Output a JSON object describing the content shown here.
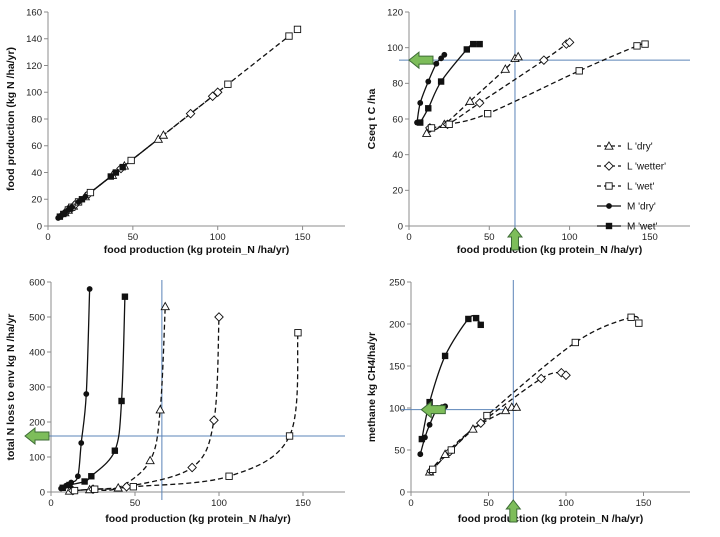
{
  "chart_data": [
    {
      "id": "tl",
      "type": "scatter",
      "xlabel": "food production (kg protein_N /ha/yr)",
      "ylabel": "food production  (kg N /ha/yr)",
      "xlim": [
        0,
        175
      ],
      "ylim": [
        0,
        160
      ],
      "xticks": [
        "0",
        "50",
        "100",
        "150"
      ],
      "yticks": [
        "0",
        "20",
        "40",
        "60",
        "80",
        "100",
        "120",
        "140",
        "160"
      ],
      "xtick_values": [
        0,
        50,
        100,
        150
      ],
      "ytick_values": [
        0,
        20,
        40,
        60,
        80,
        100,
        120,
        140,
        160
      ],
      "series": [
        {
          "marker": "triangle",
          "line": "dashed",
          "fit": "linear",
          "points": [
            [
              10,
              10
            ],
            [
              12,
              12
            ],
            [
              15,
              15
            ],
            [
              22,
              22
            ],
            [
              38,
              38
            ],
            [
              45,
              45
            ],
            [
              65,
              65
            ],
            [
              68,
              68
            ]
          ]
        },
        {
          "marker": "diamond",
          "line": "dashed",
          "fit": "linear",
          "points": [
            [
              11,
              11
            ],
            [
              13,
              13
            ],
            [
              16,
              16
            ],
            [
              24,
              24
            ],
            [
              43,
              43
            ],
            [
              84,
              84
            ],
            [
              97,
              97
            ],
            [
              100,
              100
            ]
          ]
        },
        {
          "marker": "square-open",
          "line": "dashed",
          "fit": "linear",
          "points": [
            [
              12,
              12
            ],
            [
              14,
              14
            ],
            [
              18,
              18
            ],
            [
              25,
              25
            ],
            [
              49,
              49
            ],
            [
              106,
              106
            ],
            [
              142,
              142
            ],
            [
              147,
              147
            ]
          ]
        },
        {
          "marker": "dot",
          "line": "solid",
          "fit": "linear",
          "points": [
            [
              6,
              6
            ],
            [
              8,
              8
            ],
            [
              10,
              10
            ],
            [
              12,
              12
            ],
            [
              14,
              14
            ],
            [
              18,
              18
            ],
            [
              22,
              22
            ]
          ]
        },
        {
          "marker": "square-filled",
          "line": "solid",
          "fit": "linear",
          "points": [
            [
              7,
              7
            ],
            [
              9,
              9
            ],
            [
              13,
              13
            ],
            [
              20,
              20
            ],
            [
              37,
              37
            ],
            [
              40,
              40
            ],
            [
              44,
              44
            ]
          ]
        }
      ]
    },
    {
      "id": "tr",
      "type": "scatter",
      "xlabel": "food production (kg protein_N /ha/yr)",
      "ylabel": "Cseq  t C /ha",
      "xlim": [
        0,
        175
      ],
      "ylim": [
        0,
        120
      ],
      "xticks": [
        "0",
        "50",
        "100",
        "150"
      ],
      "yticks": [
        "0",
        "20",
        "40",
        "60",
        "80",
        "100",
        "120"
      ],
      "xtick_values": [
        0,
        50,
        100,
        150
      ],
      "ytick_values": [
        0,
        20,
        40,
        60,
        80,
        100,
        120
      ],
      "ref_lines": {
        "x": 66,
        "y": 93
      },
      "legend": [
        {
          "label": "L 'dry'",
          "marker": "triangle",
          "line": "dashed"
        },
        {
          "label": "L 'wetter'",
          "marker": "diamond",
          "line": "dashed"
        },
        {
          "label": "L 'wet'",
          "marker": "square-open",
          "line": "dashed"
        },
        {
          "label": "M 'dry'",
          "marker": "dot",
          "line": "solid"
        },
        {
          "label": "M 'wet'",
          "marker": "square-filled",
          "line": "solid"
        }
      ],
      "series": [
        {
          "marker": "triangle",
          "points": [
            [
              11,
              52
            ],
            [
              22,
              57
            ],
            [
              38,
              70
            ],
            [
              60,
              88
            ],
            [
              66,
              94
            ],
            [
              68,
              95
            ]
          ]
        },
        {
          "marker": "diamond",
          "points": [
            [
              13,
              55
            ],
            [
              24,
              57
            ],
            [
              44,
              69
            ],
            [
              84,
              93
            ],
            [
              98,
              102
            ],
            [
              100,
              103
            ]
          ]
        },
        {
          "marker": "square-open",
          "points": [
            [
              14,
              55
            ],
            [
              25,
              57
            ],
            [
              49,
              63
            ],
            [
              106,
              87
            ],
            [
              142,
              101
            ],
            [
              147,
              102
            ]
          ]
        },
        {
          "marker": "dot",
          "points": [
            [
              5,
              58
            ],
            [
              7,
              69
            ],
            [
              12,
              81
            ],
            [
              17,
              91
            ],
            [
              20,
              94
            ],
            [
              22,
              96
            ]
          ]
        },
        {
          "marker": "square-filled",
          "points": [
            [
              7,
              58
            ],
            [
              12,
              66
            ],
            [
              20,
              81
            ],
            [
              36,
              99
            ],
            [
              40,
              102
            ],
            [
              44,
              102
            ]
          ]
        }
      ]
    },
    {
      "id": "bl",
      "type": "scatter",
      "xlabel": "food production (kg protein_N /ha/yr)",
      "ylabel": "total N loss to env kg N /ha/yr",
      "xlim": [
        0,
        175
      ],
      "ylim": [
        0,
        600
      ],
      "xticks": [
        "0",
        "50",
        "100",
        "150"
      ],
      "yticks": [
        "0",
        "100",
        "200",
        "300",
        "400",
        "500",
        "600"
      ],
      "xtick_values": [
        0,
        50,
        100,
        150
      ],
      "ytick_values": [
        0,
        100,
        200,
        300,
        400,
        500,
        600
      ],
      "ref_lines": {
        "x": 66,
        "y": 160
      },
      "series": [
        {
          "marker": "triangle",
          "points": [
            [
              11,
              3
            ],
            [
              23,
              7
            ],
            [
              40,
              12
            ],
            [
              59,
              90
            ],
            [
              65,
              235
            ],
            [
              68,
              530
            ]
          ]
        },
        {
          "marker": "diamond",
          "points": [
            [
              13,
              4
            ],
            [
              25,
              8
            ],
            [
              45,
              15
            ],
            [
              84,
              70
            ],
            [
              97,
              205
            ],
            [
              100,
              500
            ]
          ]
        },
        {
          "marker": "square-open",
          "points": [
            [
              14,
              4
            ],
            [
              26,
              8
            ],
            [
              49,
              15
            ],
            [
              106,
              45
            ],
            [
              142,
              160
            ],
            [
              147,
              455
            ]
          ]
        },
        {
          "marker": "dot",
          "points": [
            [
              6,
              10
            ],
            [
              9,
              18
            ],
            [
              12,
              27
            ],
            [
              16,
              45
            ],
            [
              18,
              140
            ],
            [
              21,
              280
            ],
            [
              23,
              580
            ]
          ]
        },
        {
          "marker": "square-filled",
          "points": [
            [
              7,
              12
            ],
            [
              11,
              20
            ],
            [
              20,
              30
            ],
            [
              24,
              45
            ],
            [
              38,
              118
            ],
            [
              42,
              260
            ],
            [
              44,
              558
            ]
          ]
        }
      ]
    },
    {
      "id": "br",
      "type": "scatter",
      "xlabel": "food production (kg protein_N /ha/yr)",
      "ylabel": "methane  kg CH4/ha/yr",
      "xlim": [
        0,
        180
      ],
      "ylim": [
        0,
        250
      ],
      "xticks": [
        "0",
        "50",
        "100",
        "150"
      ],
      "yticks": [
        "0",
        "50",
        "100",
        "150",
        "200",
        "250"
      ],
      "xtick_values": [
        0,
        50,
        100,
        150
      ],
      "ytick_values": [
        0,
        50,
        100,
        150,
        200,
        250
      ],
      "ref_lines": {
        "x": 66,
        "y": 98
      },
      "series": [
        {
          "marker": "triangle",
          "points": [
            [
              12,
              24
            ],
            [
              22,
              45
            ],
            [
              40,
              75
            ],
            [
              61,
              97
            ],
            [
              65,
              101
            ],
            [
              68,
              101
            ]
          ]
        },
        {
          "marker": "diamond",
          "points": [
            [
              13,
              25
            ],
            [
              25,
              48
            ],
            [
              45,
              82
            ],
            [
              84,
              135
            ],
            [
              97,
              142
            ],
            [
              100,
              139
            ]
          ]
        },
        {
          "marker": "square-open",
          "points": [
            [
              14,
              27
            ],
            [
              26,
              50
            ],
            [
              49,
              91
            ],
            [
              106,
              178
            ],
            [
              142,
              208
            ],
            [
              147,
              201
            ]
          ]
        },
        {
          "marker": "dot",
          "points": [
            [
              6,
              45
            ],
            [
              9,
              65
            ],
            [
              12,
              80
            ],
            [
              17,
              100
            ],
            [
              20,
              101
            ],
            [
              22,
              102
            ]
          ]
        },
        {
          "marker": "square-filled",
          "points": [
            [
              7,
              63
            ],
            [
              12,
              107
            ],
            [
              22,
              162
            ],
            [
              37,
              206
            ],
            [
              42,
              207
            ],
            [
              45,
              199
            ]
          ]
        }
      ]
    }
  ],
  "colors": {
    "axis": "#8c8c8c",
    "ink": "#111111",
    "ref_line": "#5b84b8",
    "arrow_fill": "#7dbd5a",
    "arrow_stroke": "#3d6b36"
  },
  "icons": {
    "arrow_left": "green-arrow-left-icon",
    "arrow_up": "green-arrow-up-icon"
  }
}
